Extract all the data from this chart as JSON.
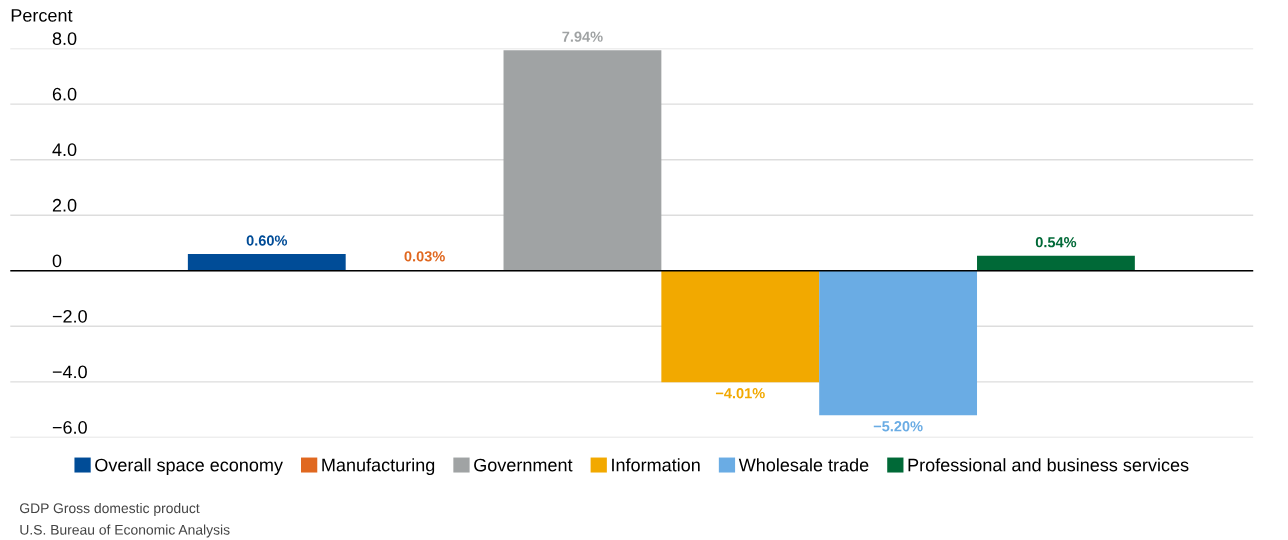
{
  "chart_data": {
    "type": "bar",
    "ylabel": "Percent",
    "categories": [
      null
    ],
    "series": [
      {
        "name": "Overall space economy",
        "color": "#004c97",
        "values": [
          0.6
        ],
        "value_labels": [
          "0.60%"
        ]
      },
      {
        "name": "Manufacturing",
        "color": "#e06820",
        "values": [
          0.03
        ],
        "value_labels": [
          "0.03%"
        ]
      },
      {
        "name": "Government",
        "color": "#a0a3a4",
        "values": [
          7.94
        ],
        "value_labels": [
          "7.94%"
        ]
      },
      {
        "name": "Information",
        "color": "#f2a900",
        "values": [
          -4.01
        ],
        "value_labels": [
          "−4.01%"
        ]
      },
      {
        "name": "Wholesale trade",
        "color": "#6aace4",
        "values": [
          -5.2
        ],
        "value_labels": [
          "−5.20%"
        ]
      },
      {
        "name": "Professional and business services",
        "color": "#006937",
        "values": [
          0.54
        ],
        "value_labels": [
          "0.54%"
        ]
      }
    ],
    "ylim": [
      -6,
      8
    ],
    "yticks": [
      {
        "value": -6,
        "label": "−6.0"
      },
      {
        "value": -4,
        "label": "−4.0"
      },
      {
        "value": -2,
        "label": "−2.0"
      },
      0,
      {
        "value": 2,
        "label": "2.0"
      },
      {
        "value": 4,
        "label": "4.0"
      },
      {
        "value": 6,
        "label": "6.0"
      },
      {
        "value": 8,
        "label": "8.0"
      }
    ],
    "grid": "y",
    "legend": "bottom",
    "annotations": [
      "GDP Gross domestic product",
      "U.S. Bureau of Economic Analysis"
    ]
  }
}
